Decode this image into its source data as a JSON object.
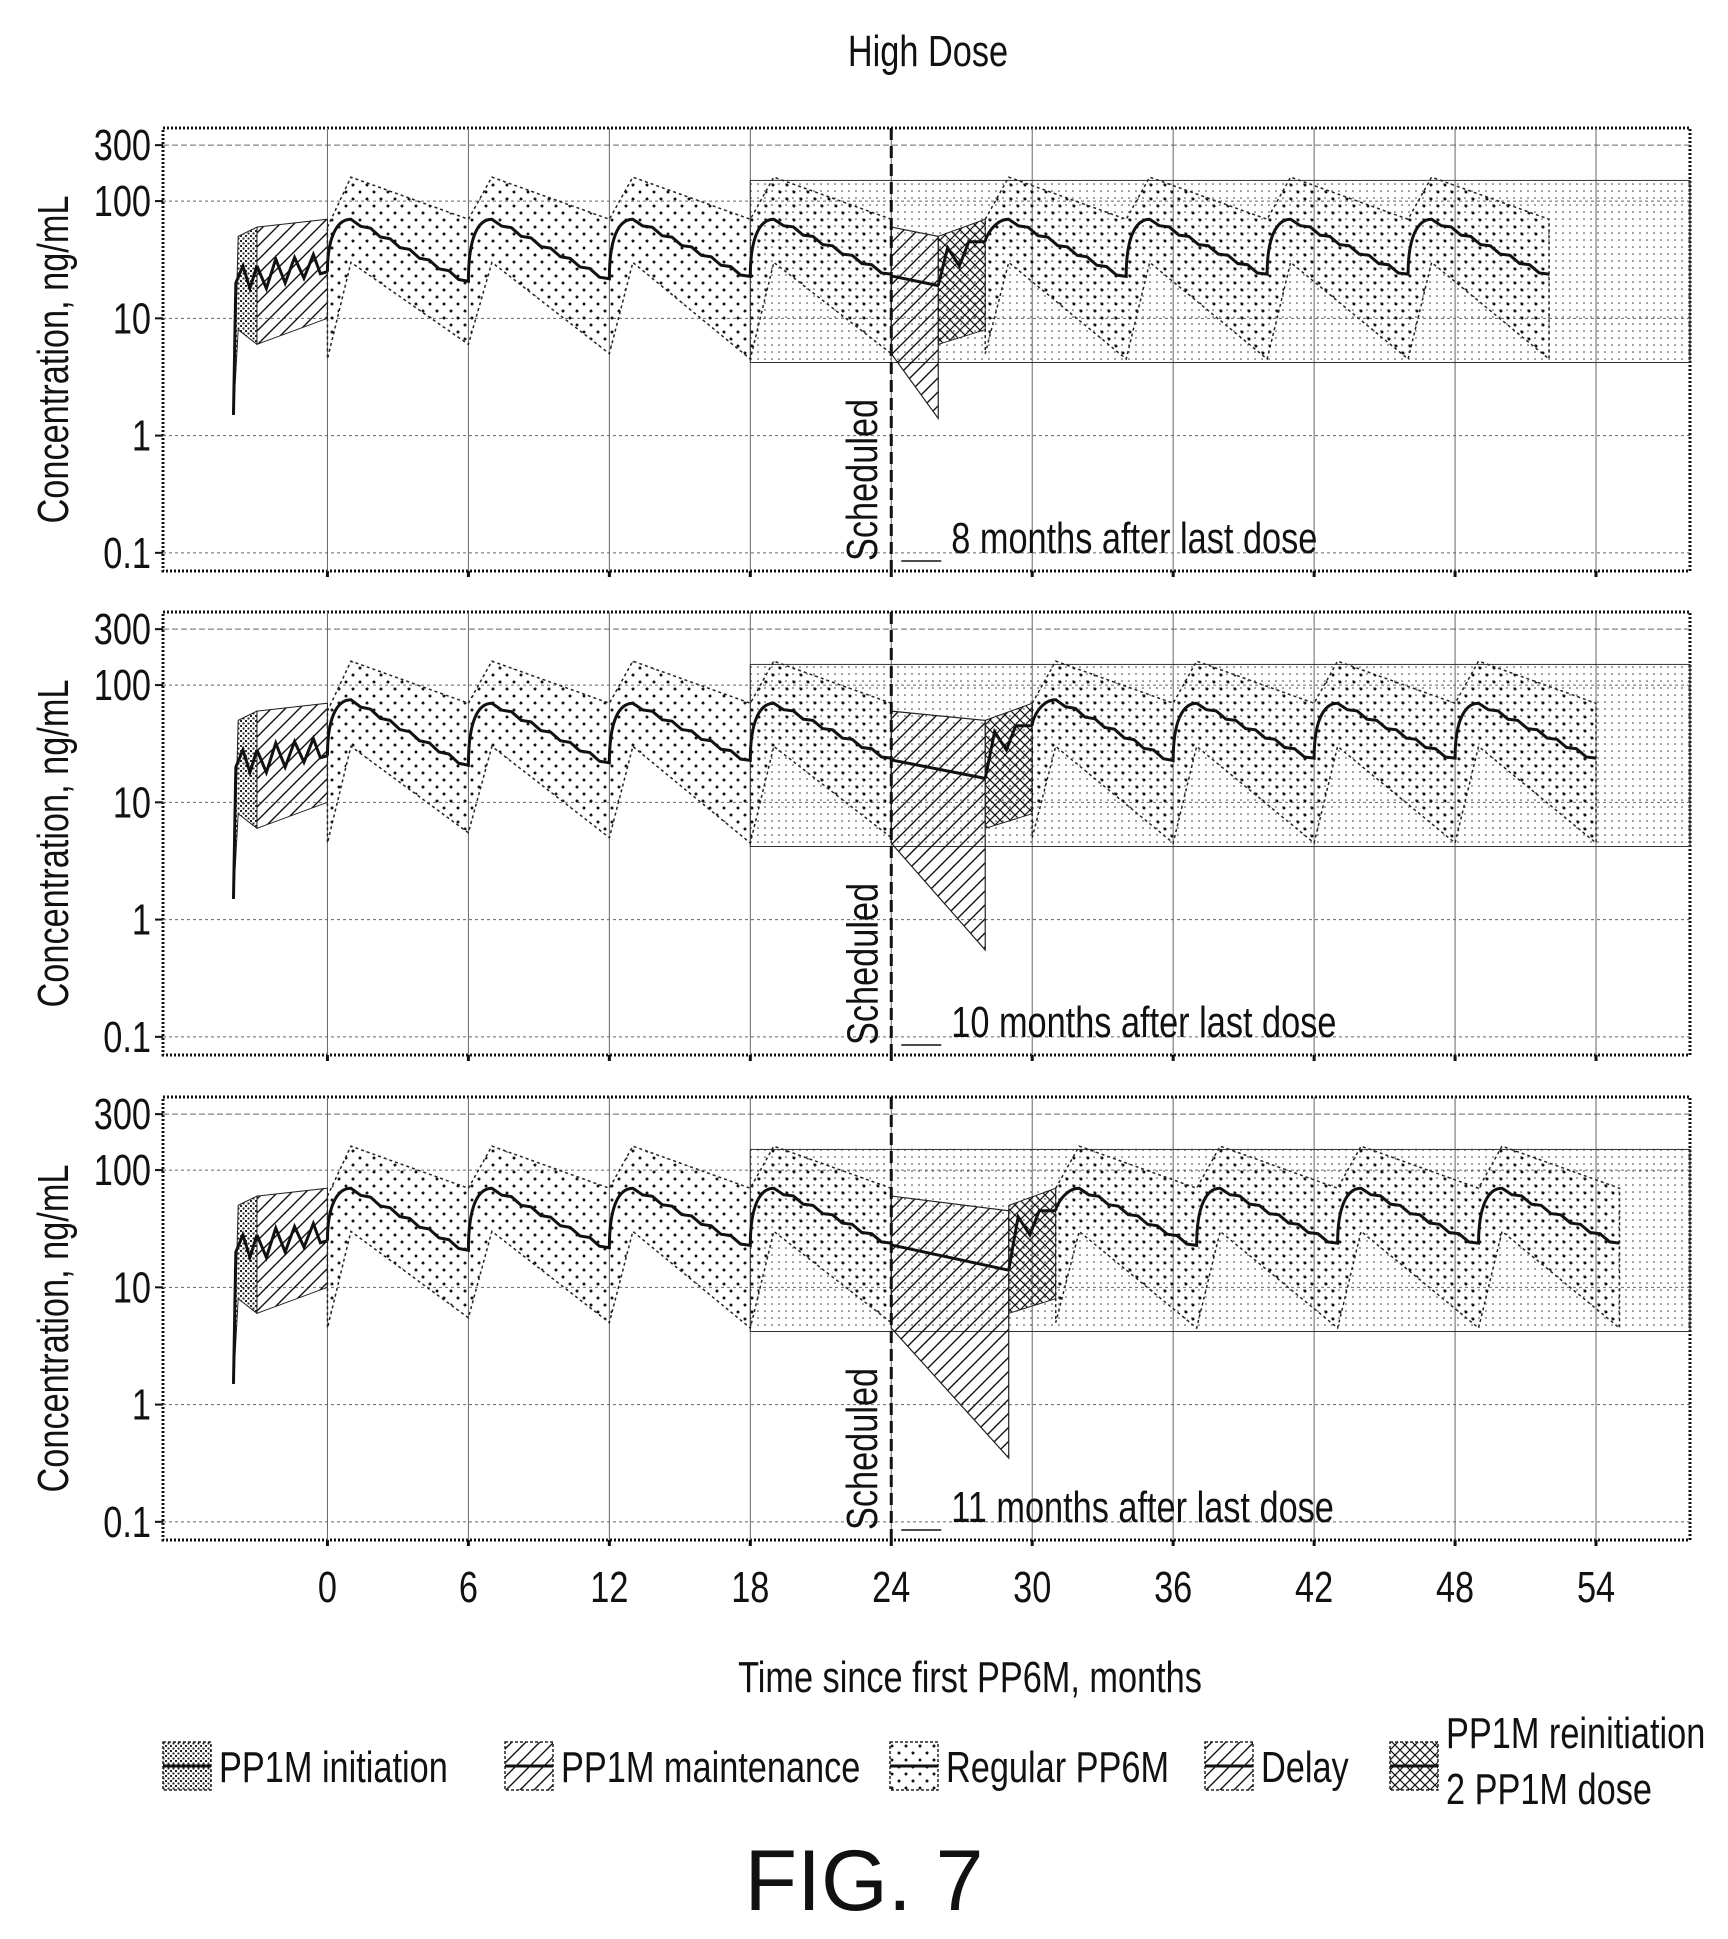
{
  "figure": {
    "title": "High Dose",
    "caption": "FIG. 7",
    "xlabel": "Time since first PP6M, months",
    "ylabel": "Concentration, ng/mL",
    "scheduled_label": "Scheduled",
    "legend": [
      {
        "id": "init",
        "lines": [
          "PP1M initiation"
        ]
      },
      {
        "id": "maint",
        "lines": [
          "PP1M maintenance"
        ]
      },
      {
        "id": "pp6m",
        "lines": [
          "Regular PP6M"
        ]
      },
      {
        "id": "delay",
        "lines": [
          "Delay"
        ]
      },
      {
        "id": "reinit",
        "lines": [
          "PP1M reinitiation",
          "2 PP1M dose"
        ]
      }
    ]
  },
  "chart_data": [
    {
      "type": "area",
      "panel_label": "8 months after last dose",
      "x_ticks": [
        0,
        6,
        12,
        18,
        24,
        30,
        36,
        42,
        48,
        54
      ],
      "y_ticks": [
        0.1,
        1,
        10,
        100,
        300
      ],
      "y_scale": "log",
      "xlim": [
        -7,
        58
      ],
      "ylim": [
        0.07,
        420
      ],
      "scheduled_x": 24,
      "delay_months": 2,
      "grid": true,
      "reference_band": {
        "x": [
          18,
          58
        ],
        "y": [
          4.2,
          150
        ]
      },
      "series": [
        {
          "name": "PP1M initiation",
          "x": [
            -4,
            -3
          ],
          "median": [
            1.5,
            28
          ]
        },
        {
          "name": "PP1M maintenance",
          "x": [
            -3,
            0
          ],
          "median": [
            28,
            25
          ]
        },
        {
          "name": "Regular PP6M",
          "x": [
            0,
            1,
            6,
            7,
            12,
            13,
            18,
            19,
            24
          ],
          "median": [
            25,
            70,
            20,
            70,
            21,
            70,
            22,
            70,
            23
          ],
          "lower": [
            4.5,
            30,
            6,
            30,
            5,
            30,
            4.5,
            30,
            5
          ],
          "upper": [
            60,
            160,
            70,
            160,
            70,
            160,
            70,
            160,
            70
          ]
        },
        {
          "name": "Delay",
          "x": [
            24,
            26
          ],
          "median": [
            23,
            19
          ],
          "lower": [
            5,
            1.4
          ],
          "upper": [
            60,
            50
          ]
        },
        {
          "name": "PP1M reinitiation 2 PP1M dose",
          "x": [
            26,
            28
          ],
          "median": [
            19,
            45
          ]
        },
        {
          "name": "Regular PP6M (post-reinitiation)",
          "x": [
            28,
            29,
            34,
            35,
            40,
            41,
            46,
            47,
            52
          ],
          "median": [
            45,
            70,
            22,
            70,
            23,
            70,
            23,
            70,
            23
          ],
          "lower": [
            5,
            30,
            4.5,
            30,
            4.5,
            30,
            4.5,
            30,
            4.5
          ],
          "upper": [
            70,
            160,
            70,
            160,
            70,
            160,
            70,
            160,
            70
          ]
        }
      ]
    },
    {
      "type": "area",
      "panel_label": "10 months after last dose",
      "x_ticks": [
        0,
        6,
        12,
        18,
        24,
        30,
        36,
        42,
        48,
        54
      ],
      "y_ticks": [
        0.1,
        1,
        10,
        100,
        300
      ],
      "y_scale": "log",
      "xlim": [
        -7,
        58
      ],
      "ylim": [
        0.07,
        420
      ],
      "scheduled_x": 24,
      "delay_months": 4,
      "grid": true,
      "reference_band": {
        "x": [
          18,
          58
        ],
        "y": [
          4.2,
          150
        ]
      },
      "series": [
        {
          "name": "PP1M initiation",
          "x": [
            -4,
            -3
          ],
          "median": [
            1.5,
            28
          ]
        },
        {
          "name": "PP1M maintenance",
          "x": [
            -3,
            0
          ],
          "median": [
            28,
            25
          ]
        },
        {
          "name": "Regular PP6M",
          "x": [
            0,
            1,
            6,
            7,
            12,
            13,
            18,
            19,
            24
          ],
          "median": [
            25,
            75,
            20,
            70,
            21,
            70,
            22,
            70,
            23
          ],
          "lower": [
            4.5,
            30,
            5.5,
            30,
            5,
            30,
            4.5,
            30,
            5
          ],
          "upper": [
            60,
            160,
            70,
            160,
            70,
            160,
            70,
            160,
            70
          ]
        },
        {
          "name": "Delay",
          "x": [
            24,
            28
          ],
          "median": [
            23,
            16
          ],
          "lower": [
            4.5,
            0.55
          ],
          "upper": [
            60,
            50
          ]
        },
        {
          "name": "PP1M reinitiation 2 PP1M dose",
          "x": [
            28,
            30
          ],
          "median": [
            16,
            45
          ]
        },
        {
          "name": "Regular PP6M (post-reinitiation)",
          "x": [
            30,
            31,
            36,
            37,
            42,
            43,
            48,
            49,
            54
          ],
          "median": [
            45,
            75,
            22,
            70,
            23,
            70,
            23,
            70,
            23
          ],
          "lower": [
            5,
            30,
            4.5,
            30,
            4.5,
            30,
            4.5,
            30,
            4.5
          ],
          "upper": [
            70,
            160,
            70,
            160,
            70,
            160,
            70,
            160,
            70
          ]
        }
      ]
    },
    {
      "type": "area",
      "panel_label": "11 months after last dose",
      "x_ticks": [
        0,
        6,
        12,
        18,
        24,
        30,
        36,
        42,
        48,
        54
      ],
      "y_ticks": [
        0.1,
        1,
        10,
        100,
        300
      ],
      "y_scale": "log",
      "xlim": [
        -7,
        58
      ],
      "ylim": [
        0.07,
        420
      ],
      "scheduled_x": 24,
      "delay_months": 5,
      "grid": true,
      "reference_band": {
        "x": [
          18,
          58
        ],
        "y": [
          4.2,
          150
        ]
      },
      "series": [
        {
          "name": "PP1M initiation",
          "x": [
            -4,
            -3
          ],
          "median": [
            1.5,
            28
          ]
        },
        {
          "name": "PP1M maintenance",
          "x": [
            -3,
            0
          ],
          "median": [
            28,
            25
          ]
        },
        {
          "name": "Regular PP6M",
          "x": [
            0,
            1,
            6,
            7,
            12,
            13,
            18,
            19,
            24
          ],
          "median": [
            25,
            70,
            20,
            70,
            21,
            70,
            22,
            70,
            23
          ],
          "lower": [
            4.5,
            30,
            5.5,
            30,
            5,
            30,
            4.5,
            30,
            5
          ],
          "upper": [
            60,
            160,
            70,
            160,
            70,
            160,
            70,
            160,
            70
          ]
        },
        {
          "name": "Delay",
          "x": [
            24,
            29
          ],
          "median": [
            23,
            14
          ],
          "lower": [
            4.5,
            0.35
          ],
          "upper": [
            60,
            45
          ]
        },
        {
          "name": "PP1M reinitiation 2 PP1M dose",
          "x": [
            29,
            31
          ],
          "median": [
            14,
            45
          ]
        },
        {
          "name": "Regular PP6M (post-reinitiation)",
          "x": [
            31,
            32,
            37,
            38,
            43,
            44,
            49,
            50,
            55
          ],
          "median": [
            45,
            70,
            22,
            70,
            23,
            70,
            23,
            70,
            23
          ],
          "lower": [
            5,
            30,
            4.5,
            30,
            4.5,
            30,
            4.5,
            30,
            4.5
          ],
          "upper": [
            70,
            160,
            70,
            160,
            70,
            160,
            70,
            160,
            70
          ]
        }
      ]
    }
  ]
}
